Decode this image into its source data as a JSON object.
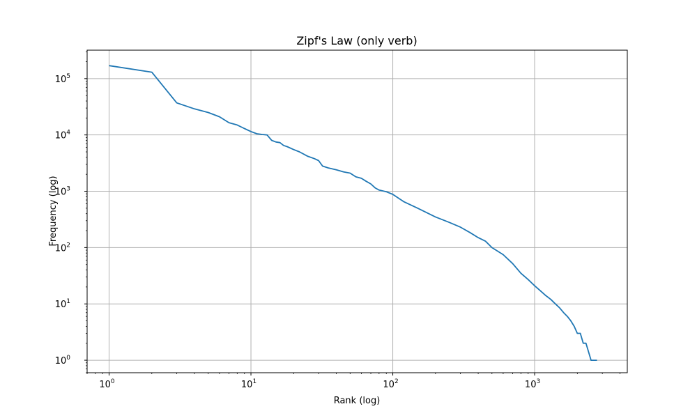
{
  "chart_data": {
    "type": "line",
    "title": "Zipf's Law (only verb)",
    "xlabel": "Rank (log)",
    "ylabel": "Frequency (log)",
    "xscale": "log",
    "yscale": "log",
    "xlim": [
      0.7,
      4500
    ],
    "ylim": [
      0.6,
      320000
    ],
    "grid": true,
    "x_ticks": [
      {
        "value": 1,
        "base": "10",
        "exp": "0"
      },
      {
        "value": 10,
        "base": "10",
        "exp": "1"
      },
      {
        "value": 100,
        "base": "10",
        "exp": "2"
      },
      {
        "value": 1000,
        "base": "10",
        "exp": "3"
      }
    ],
    "y_ticks": [
      {
        "value": 1,
        "base": "10",
        "exp": "0"
      },
      {
        "value": 10,
        "base": "10",
        "exp": "1"
      },
      {
        "value": 100,
        "base": "10",
        "exp": "2"
      },
      {
        "value": 1000,
        "base": "10",
        "exp": "3"
      },
      {
        "value": 10000,
        "base": "10",
        "exp": "4"
      },
      {
        "value": 100000,
        "base": "10",
        "exp": "5"
      }
    ],
    "series": [
      {
        "color": "#1f77b4",
        "x": [
          1,
          2,
          3,
          4,
          5,
          6,
          7,
          8,
          9,
          10,
          11,
          12,
          13,
          14,
          15,
          16,
          17,
          18,
          20,
          22,
          25,
          28,
          30,
          32,
          35,
          40,
          45,
          50,
          55,
          60,
          65,
          70,
          75,
          80,
          90,
          100,
          110,
          120,
          150,
          200,
          250,
          300,
          350,
          400,
          450,
          500,
          600,
          700,
          800,
          900,
          1000,
          1100,
          1200,
          1300,
          1400,
          1500,
          1600,
          1700,
          1800,
          1900,
          2000,
          2100,
          2200,
          2300,
          2500,
          2750
        ],
        "y": [
          170000,
          130000,
          37000,
          29000,
          25000,
          21000,
          16500,
          15000,
          13000,
          11500,
          10500,
          10200,
          10000,
          8000,
          7500,
          7300,
          6500,
          6200,
          5500,
          5000,
          4200,
          3800,
          3500,
          2800,
          2600,
          2400,
          2200,
          2100,
          1800,
          1700,
          1500,
          1350,
          1150,
          1050,
          980,
          880,
          750,
          650,
          500,
          350,
          280,
          230,
          185,
          150,
          130,
          100,
          75,
          52,
          35,
          27,
          21,
          17,
          14,
          12,
          10,
          8.5,
          7,
          6,
          5,
          4,
          3,
          3,
          2,
          2,
          1,
          1
        ]
      }
    ]
  }
}
